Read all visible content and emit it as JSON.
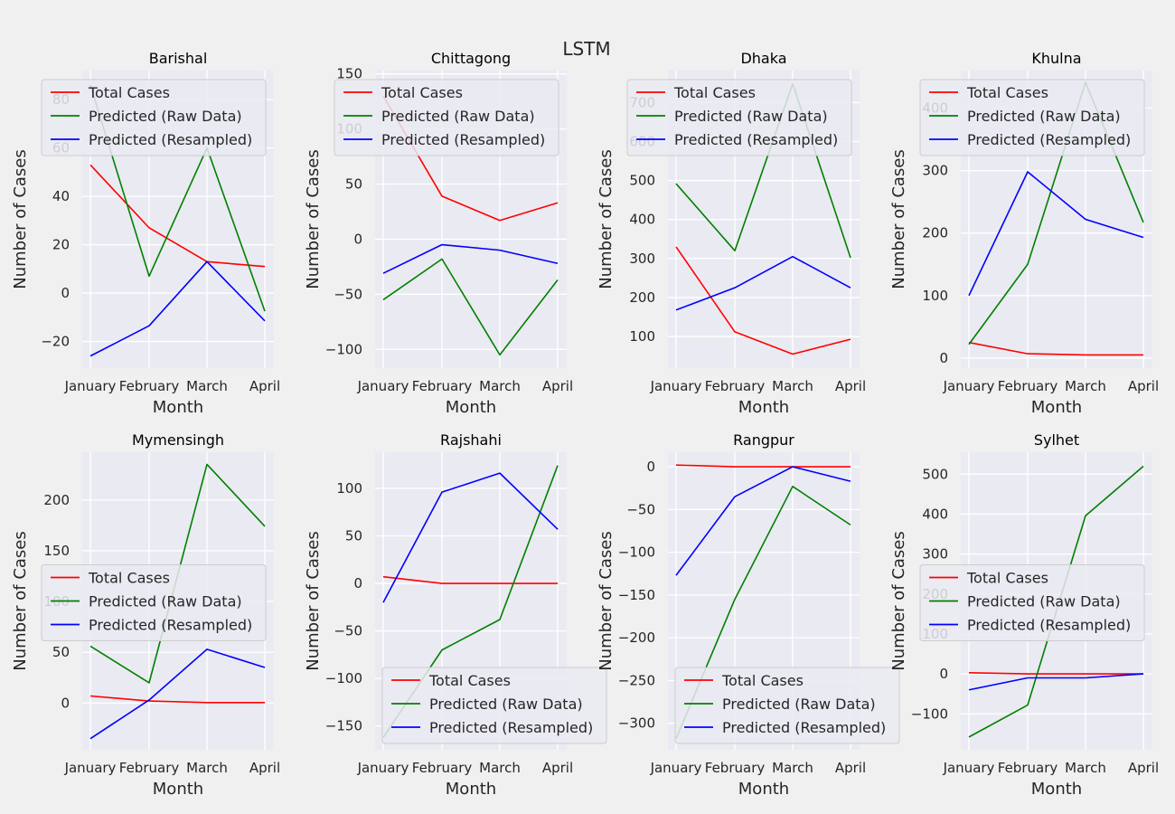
{
  "chart_data": {
    "suptitle": "LSTM",
    "type": "line",
    "x": [
      "January",
      "February",
      "March",
      "April"
    ],
    "xlabel": "Month",
    "ylabel": "Number of Cases",
    "grid": true,
    "series_colors": {
      "Total Cases": "#ff0000",
      "Predicted (Raw Data)": "#008000",
      "Predicted (Resampled)": "#0000ff"
    },
    "panels": [
      {
        "title": "Barishal",
        "ylim": [
          -31,
          92
        ],
        "yticks": [
          -20,
          0,
          20,
          40,
          60,
          80
        ],
        "ytick_labels": [
          "−20",
          "0",
          "20",
          "40",
          "60",
          "80"
        ],
        "legend": "upper-left",
        "series": [
          {
            "name": "Total Cases",
            "values": [
              53,
              27,
              13,
              11
            ]
          },
          {
            "name": "Predicted (Raw Data)",
            "values": [
              86,
              7,
              60,
              -7.5
            ]
          },
          {
            "name": "Predicted (Resampled)",
            "values": [
              -26,
              -13.5,
              13,
              -11.5
            ]
          }
        ]
      },
      {
        "title": "Chittagong",
        "ylim": [
          -117,
          153
        ],
        "yticks": [
          -100,
          -50,
          0,
          50,
          100,
          150
        ],
        "ytick_labels": [
          "−100",
          "−50",
          "0",
          "50",
          "100",
          "150"
        ],
        "legend": "upper-left",
        "series": [
          {
            "name": "Total Cases",
            "values": [
              130,
              39,
              17,
              33
            ]
          },
          {
            "name": "Predicted (Raw Data)",
            "values": [
              -55,
              -18,
              -105,
              -37
            ]
          },
          {
            "name": "Predicted (Resampled)",
            "values": [
              -31,
              -5,
              -10,
              -22
            ]
          }
        ]
      },
      {
        "title": "Dhaka",
        "ylim": [
          19,
          782
        ],
        "yticks": [
          100,
          200,
          300,
          400,
          500,
          600,
          700
        ],
        "ytick_labels": [
          "100",
          "200",
          "300",
          "400",
          "500",
          "600",
          "700"
        ],
        "legend": "upper-left",
        "series": [
          {
            "name": "Total Cases",
            "values": [
              330,
              112,
              55,
              93
            ]
          },
          {
            "name": "Predicted (Raw Data)",
            "values": [
              492,
              320,
              748,
              302
            ]
          },
          {
            "name": "Predicted (Resampled)",
            "values": [
              168,
              225,
              305,
              225
            ]
          }
        ]
      },
      {
        "title": "Khulna",
        "ylim": [
          -16,
          460
        ],
        "yticks": [
          0,
          100,
          200,
          300,
          400
        ],
        "ytick_labels": [
          "0",
          "100",
          "200",
          "300",
          "400"
        ],
        "legend": "upper-left",
        "series": [
          {
            "name": "Total Cases",
            "values": [
              25,
              7,
              5,
              5
            ]
          },
          {
            "name": "Predicted (Raw Data)",
            "values": [
              22,
              150,
              441,
              217
            ]
          },
          {
            "name": "Predicted (Resampled)",
            "values": [
              100,
              298,
              222,
              193
            ]
          }
        ]
      },
      {
        "title": "Mymensingh",
        "ylim": [
          -46,
          247
        ],
        "yticks": [
          0,
          50,
          100,
          150,
          200
        ],
        "ytick_labels": [
          "0",
          "50",
          "100",
          "150",
          "200"
        ],
        "legend": "center-left",
        "series": [
          {
            "name": "Total Cases",
            "values": [
              7,
              2,
              0.5,
              0.5
            ]
          },
          {
            "name": "Predicted (Raw Data)",
            "values": [
              56,
              20,
              235,
              174
            ]
          },
          {
            "name": "Predicted (Resampled)",
            "values": [
              -35,
              3,
              53,
              35
            ]
          }
        ]
      },
      {
        "title": "Rajshahi",
        "ylim": [
          -175,
          138
        ],
        "yticks": [
          -150,
          -100,
          -50,
          0,
          50,
          100
        ],
        "ytick_labels": [
          "−150",
          "−100",
          "−50",
          "0",
          "50",
          "100"
        ],
        "legend": "lower-right",
        "series": [
          {
            "name": "Total Cases",
            "values": [
              7,
              0,
              0,
              0
            ]
          },
          {
            "name": "Predicted (Raw Data)",
            "values": [
              -162,
              -70,
              -38,
              124
            ]
          },
          {
            "name": "Predicted (Resampled)",
            "values": [
              -20,
              96,
              116,
              57
            ]
          }
        ]
      },
      {
        "title": "Rangpur",
        "ylim": [
          -331,
          17
        ],
        "yticks": [
          -300,
          -250,
          -200,
          -150,
          -100,
          -50,
          0
        ],
        "ytick_labels": [
          "−300",
          "−250",
          "−200",
          "−150",
          "−100",
          "−50",
          "0"
        ],
        "legend": "lower-right",
        "series": [
          {
            "name": "Total Cases",
            "values": [
              2,
              0,
              0,
              0
            ]
          },
          {
            "name": "Predicted (Raw Data)",
            "values": [
              -318,
              -155,
              -23,
              -68
            ]
          },
          {
            "name": "Predicted (Resampled)",
            "values": [
              -127,
              -35,
              0,
              -17
            ]
          }
        ]
      },
      {
        "title": "Sylhet",
        "ylim": [
          -190,
          555
        ],
        "yticks": [
          -100,
          0,
          100,
          200,
          300,
          400,
          500
        ],
        "ytick_labels": [
          "−100",
          "0",
          "100",
          "200",
          "300",
          "400",
          "500"
        ],
        "legend": "center-left",
        "series": [
          {
            "name": "Total Cases",
            "values": [
              3,
              0,
              0,
              0
            ]
          },
          {
            "name": "Predicted (Raw Data)",
            "values": [
              -158,
              -78,
              396,
              520
            ]
          },
          {
            "name": "Predicted (Resampled)",
            "values": [
              -40,
              -10,
              -10,
              0
            ]
          }
        ]
      }
    ]
  }
}
